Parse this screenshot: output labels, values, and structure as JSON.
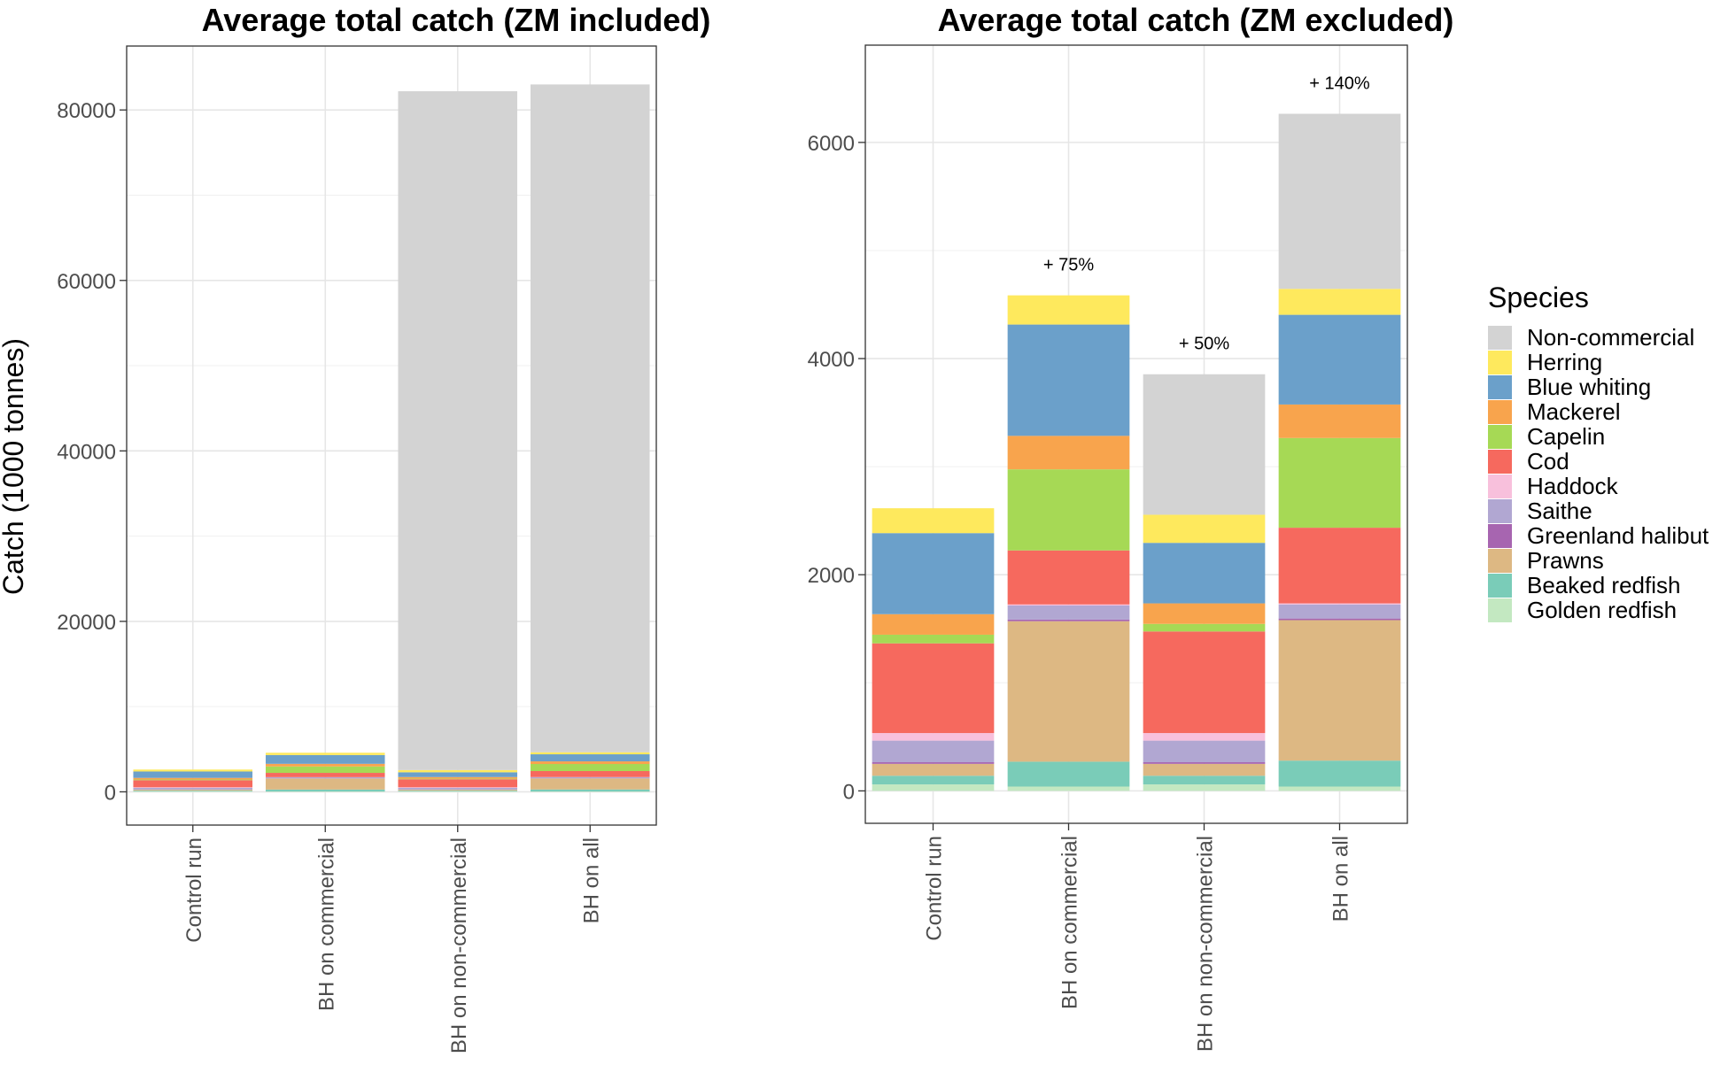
{
  "chart_data": [
    {
      "type": "bar",
      "stacked": true,
      "title": "Average total catch (ZM included)",
      "ylabel": "Catch (1000 tonnes)",
      "xlabel": "",
      "ylim": [
        -3900,
        87500
      ],
      "yticks": [
        0,
        20000,
        40000,
        60000,
        80000
      ],
      "yticklabels": [
        "0",
        "20000",
        "40000",
        "60000",
        "80000"
      ],
      "categories": [
        "Control run",
        "BH on commercial",
        "BH on non-commercial",
        "BH on all"
      ],
      "series": [
        {
          "name": "Golden redfish",
          "values": [
            60,
            40,
            60,
            40
          ]
        },
        {
          "name": "Beaked redfish",
          "values": [
            80,
            230,
            80,
            240
          ]
        },
        {
          "name": "Prawns",
          "values": [
            110,
            1300,
            110,
            1300
          ]
        },
        {
          "name": "Greenland halibut",
          "values": [
            15,
            15,
            15,
            15
          ]
        },
        {
          "name": "Saithe",
          "values": [
            200,
            130,
            200,
            130
          ]
        },
        {
          "name": "Haddock",
          "values": [
            70,
            10,
            70,
            10
          ]
        },
        {
          "name": "Cod",
          "values": [
            830,
            500,
            940,
            700
          ]
        },
        {
          "name": "Capelin",
          "values": [
            80,
            750,
            70,
            830
          ]
        },
        {
          "name": "Mackerel",
          "values": [
            190,
            310,
            190,
            310
          ]
        },
        {
          "name": "Blue whiting",
          "values": [
            750,
            1030,
            560,
            830
          ]
        },
        {
          "name": "Herring",
          "values": [
            230,
            270,
            260,
            240
          ]
        },
        {
          "name": "Non-commercial",
          "values": [
            0,
            0,
            79640,
            78350
          ]
        }
      ],
      "grid": true,
      "legend": "none"
    },
    {
      "type": "bar",
      "stacked": true,
      "title": "Average total catch (ZM excluded)",
      "ylabel": "",
      "xlabel": "",
      "ylim": [
        -300,
        6900
      ],
      "yticks": [
        0,
        2000,
        4000,
        6000
      ],
      "yticklabels": [
        "0",
        "2000",
        "4000",
        "6000"
      ],
      "categories": [
        "Control run",
        "BH on commercial",
        "BH on non-commercial",
        "BH on all"
      ],
      "series": [
        {
          "name": "Golden redfish",
          "values": [
            60,
            40,
            60,
            40
          ]
        },
        {
          "name": "Beaked redfish",
          "values": [
            80,
            230,
            80,
            240
          ]
        },
        {
          "name": "Prawns",
          "values": [
            110,
            1300,
            110,
            1300
          ]
        },
        {
          "name": "Greenland halibut",
          "values": [
            15,
            15,
            15,
            15
          ]
        },
        {
          "name": "Saithe",
          "values": [
            200,
            130,
            200,
            130
          ]
        },
        {
          "name": "Haddock",
          "values": [
            70,
            10,
            70,
            10
          ]
        },
        {
          "name": "Cod",
          "values": [
            830,
            500,
            940,
            700
          ]
        },
        {
          "name": "Capelin",
          "values": [
            80,
            750,
            70,
            830
          ]
        },
        {
          "name": "Mackerel",
          "values": [
            190,
            310,
            190,
            310
          ]
        },
        {
          "name": "Blue whiting",
          "values": [
            750,
            1030,
            560,
            830
          ]
        },
        {
          "name": "Herring",
          "values": [
            230,
            270,
            260,
            240
          ]
        },
        {
          "name": "Non-commercial",
          "values": [
            0,
            0,
            1300,
            1620
          ]
        }
      ],
      "annotations": [
        {
          "category": "BH on commercial",
          "text": "+ 75%"
        },
        {
          "category": "BH on non-commercial",
          "text": "+ 50%"
        },
        {
          "category": "BH on all",
          "text": "+ 140%"
        }
      ],
      "grid": true,
      "legend": "right"
    }
  ],
  "legend": {
    "title": "Species",
    "items": [
      {
        "name": "Non-commercial",
        "color": "#d3d3d3"
      },
      {
        "name": "Herring",
        "color": "#fee95d"
      },
      {
        "name": "Blue whiting",
        "color": "#6ba0ca"
      },
      {
        "name": "Mackerel",
        "color": "#f8a44d"
      },
      {
        "name": "Capelin",
        "color": "#a6d955"
      },
      {
        "name": "Cod",
        "color": "#f6695e"
      },
      {
        "name": "Haddock",
        "color": "#f8c0dc"
      },
      {
        "name": "Saithe",
        "color": "#b1a7d2"
      },
      {
        "name": "Greenland halibut",
        "color": "#a765b0"
      },
      {
        "name": "Prawns",
        "color": "#ddb883"
      },
      {
        "name": "Beaked redfish",
        "color": "#7accb8"
      },
      {
        "name": "Golden redfish",
        "color": "#c3e8c1"
      }
    ]
  }
}
